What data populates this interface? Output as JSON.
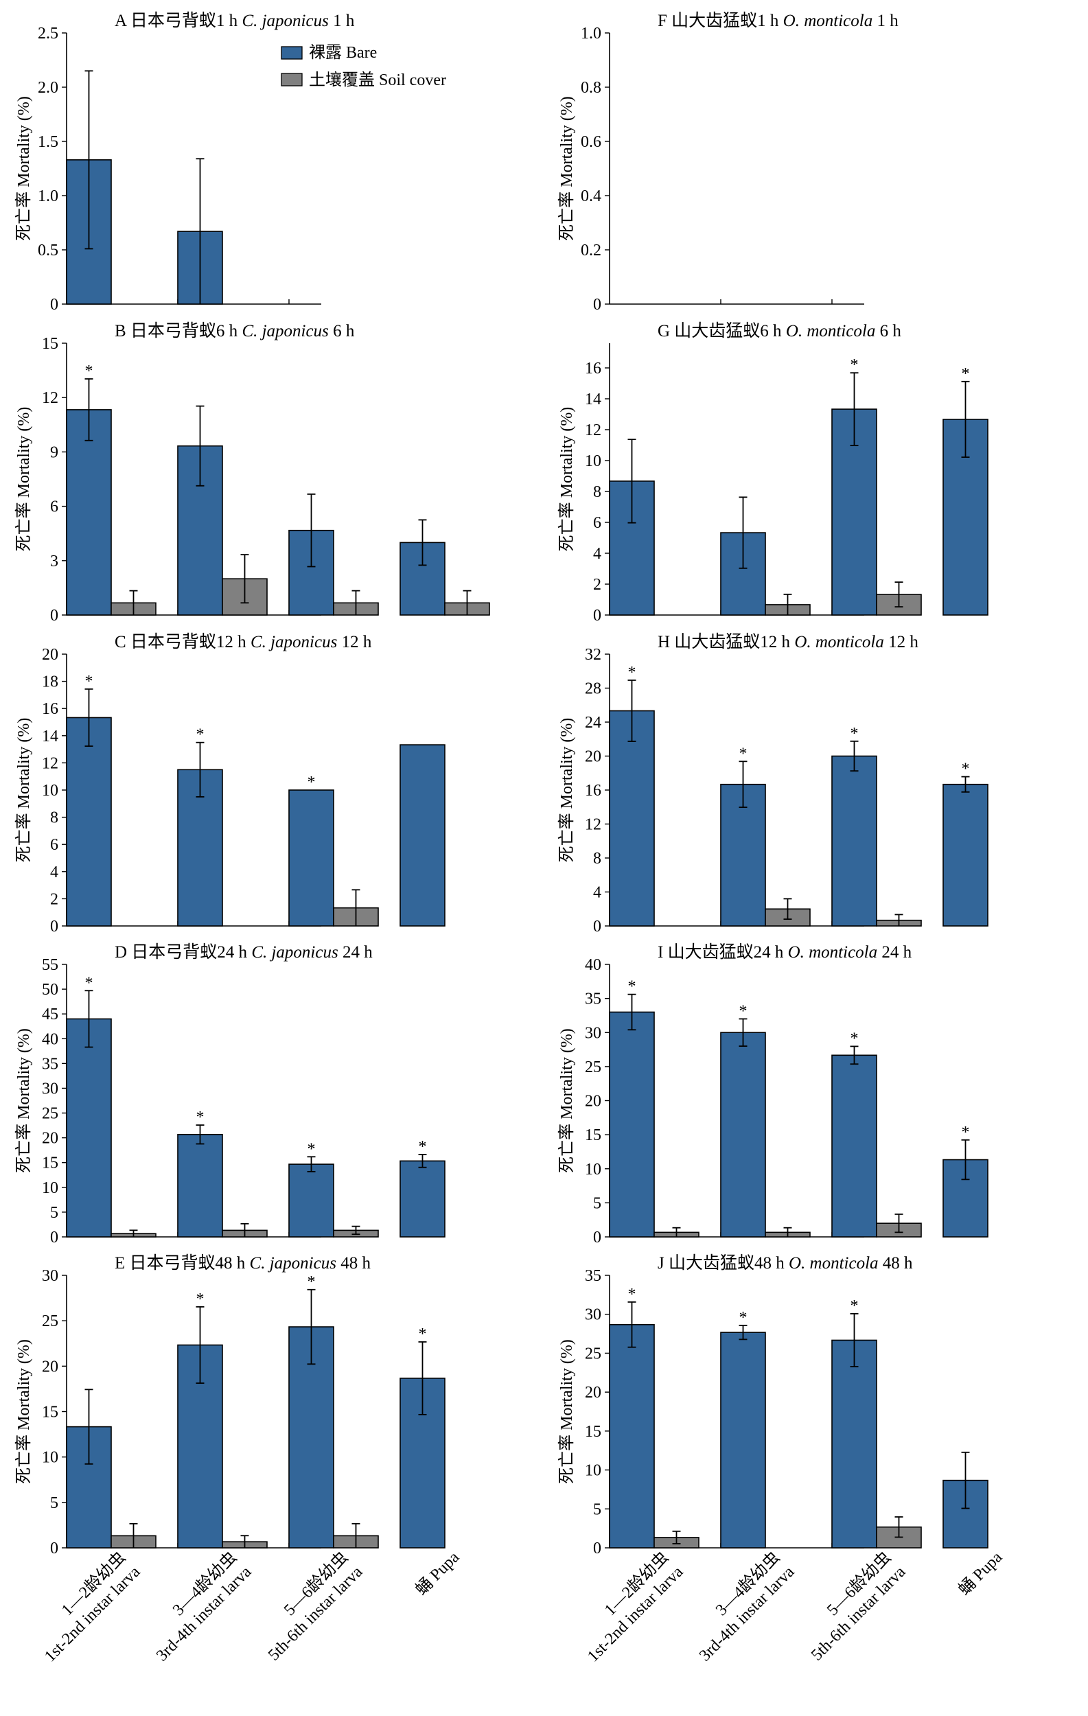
{
  "colors": {
    "bare": "#336699",
    "soil": "#808080"
  },
  "legend": [
    {
      "label": "裸露 Bare"
    },
    {
      "label": "土壤覆盖 Soil cover"
    }
  ],
  "ylabel": "死亡率 Mortality (%)",
  "x_categories": [
    {
      "zh": "1—2龄幼虫",
      "en": "1st-2nd instar larva"
    },
    {
      "zh": "3—4龄幼虫",
      "en": "3rd-4th instar larva"
    },
    {
      "zh": "5—6龄幼虫",
      "en": "5th-6th instar larva"
    },
    {
      "zh": "蛹 Pupa",
      "en": ""
    }
  ],
  "chart_data": [
    {
      "id": "A",
      "type": "bar",
      "title_prefix": "A  日本弓背蚁1 h ",
      "title_species": "C. japonicus",
      "title_suffix": " 1 h",
      "ylim": [
        0,
        2.5
      ],
      "yticks": [
        "0",
        "0.5",
        "1.0",
        "1.5",
        "2.0",
        "2.5"
      ],
      "series": [
        {
          "name": "裸露 Bare",
          "values": [
            1.33,
            0.67,
            0,
            0
          ],
          "errors": [
            0.82,
            0.67,
            0,
            0
          ],
          "significant": [
            false,
            false,
            false,
            false
          ]
        },
        {
          "name": "土壤覆盖 Soil cover",
          "values": [
            0,
            0,
            0,
            0
          ],
          "errors": [
            0,
            0,
            0,
            0
          ]
        }
      ]
    },
    {
      "id": "F",
      "type": "bar",
      "title_prefix": "F  山大齿猛蚁1 h ",
      "title_species": "O. monticola",
      "title_suffix": " 1 h",
      "ylim": [
        0,
        1.0
      ],
      "yticks": [
        "0",
        "0.2",
        "0.4",
        "0.6",
        "0.8",
        "1.0"
      ],
      "series": [
        {
          "name": "裸露 Bare",
          "values": [
            0,
            0,
            0,
            0
          ],
          "errors": [
            0,
            0,
            0,
            0
          ],
          "significant": [
            false,
            false,
            false,
            false
          ]
        },
        {
          "name": "土壤覆盖 Soil cover",
          "values": [
            0,
            0,
            0,
            0
          ],
          "errors": [
            0,
            0,
            0,
            0
          ]
        }
      ]
    },
    {
      "id": "B",
      "type": "bar",
      "title_prefix": "B  日本弓背蚁6 h ",
      "title_species": "C. japonicus",
      "title_suffix": " 6 h",
      "ylim": [
        0,
        15
      ],
      "yticks": [
        "0",
        "3",
        "6",
        "9",
        "12",
        "15"
      ],
      "series": [
        {
          "name": "裸露 Bare",
          "values": [
            11.33,
            9.33,
            4.67,
            4.0
          ],
          "errors": [
            1.7,
            2.2,
            2.0,
            1.25
          ],
          "significant": [
            true,
            false,
            false,
            false
          ]
        },
        {
          "name": "土壤覆盖 Soil cover",
          "values": [
            0.67,
            2.0,
            0.67,
            0.67
          ],
          "errors": [
            0.67,
            1.33,
            0.67,
            0.67
          ]
        }
      ]
    },
    {
      "id": "G",
      "type": "bar",
      "title_prefix": "G  山大齿猛蚁6 h ",
      "title_species": "O. monticola",
      "title_suffix": " 6 h",
      "ylim": [
        0,
        17.6
      ],
      "yticks": [
        "0",
        "2",
        "4",
        "6",
        "8",
        "10",
        "12",
        "14",
        "16"
      ],
      "series": [
        {
          "name": "裸露 Bare",
          "values": [
            8.67,
            5.33,
            13.33,
            12.67
          ],
          "errors": [
            2.7,
            2.3,
            2.35,
            2.45
          ],
          "significant": [
            false,
            false,
            true,
            true
          ]
        },
        {
          "name": "土壤覆盖 Soil cover",
          "values": [
            0,
            0.67,
            1.33,
            0
          ],
          "errors": [
            0,
            0.67,
            0.8,
            0
          ]
        }
      ]
    },
    {
      "id": "C",
      "type": "bar",
      "title_prefix": "C  日本弓背蚁12 h ",
      "title_species": "C. japonicus",
      "title_suffix": " 12 h",
      "ylim": [
        0,
        20
      ],
      "yticks": [
        "0",
        "2",
        "4",
        "6",
        "8",
        "10",
        "12",
        "14",
        "16",
        "18",
        "20"
      ],
      "series": [
        {
          "name": "裸露 Bare",
          "values": [
            15.33,
            11.5,
            10.0,
            13.33
          ],
          "errors": [
            2.1,
            2.0,
            0,
            0
          ],
          "significant": [
            true,
            true,
            true,
            false
          ]
        },
        {
          "name": "土壤覆盖 Soil cover",
          "values": [
            0,
            0,
            1.33,
            0
          ],
          "errors": [
            0,
            0,
            1.33,
            0
          ]
        }
      ]
    },
    {
      "id": "H",
      "type": "bar",
      "title_prefix": "H  山大齿猛蚁12 h ",
      "title_species": "O. monticola",
      "title_suffix": " 12 h",
      "ylim": [
        0,
        32
      ],
      "yticks": [
        "0",
        "4",
        "8",
        "12",
        "16",
        "20",
        "24",
        "28",
        "32"
      ],
      "series": [
        {
          "name": "裸露 Bare",
          "values": [
            25.33,
            16.67,
            20.0,
            16.67
          ],
          "errors": [
            3.6,
            2.7,
            1.75,
            0.9
          ],
          "significant": [
            true,
            true,
            true,
            true
          ]
        },
        {
          "name": "土壤覆盖 Soil cover",
          "values": [
            0,
            2.0,
            0.67,
            0
          ],
          "errors": [
            0,
            1.2,
            0.67,
            0
          ]
        }
      ]
    },
    {
      "id": "D",
      "type": "bar",
      "title_prefix": "D  日本弓背蚁24 h ",
      "title_species": "C. japonicus",
      "title_suffix": " 24 h",
      "ylim": [
        0,
        55
      ],
      "yticks": [
        "0",
        "5",
        "10",
        "15",
        "20",
        "25",
        "30",
        "35",
        "40",
        "45",
        "50",
        "55"
      ],
      "series": [
        {
          "name": "裸露 Bare",
          "values": [
            44.0,
            20.67,
            14.67,
            15.33
          ],
          "errors": [
            5.7,
            1.9,
            1.5,
            1.3
          ],
          "significant": [
            true,
            true,
            true,
            true
          ]
        },
        {
          "name": "土壤覆盖 Soil cover",
          "values": [
            0.67,
            1.33,
            1.33,
            0
          ],
          "errors": [
            0.67,
            1.33,
            0.8,
            0
          ]
        }
      ]
    },
    {
      "id": "I",
      "type": "bar",
      "title_prefix": "I  山大齿猛蚁24 h ",
      "title_species": "O. monticola",
      "title_suffix": " 24 h",
      "ylim": [
        0,
        40
      ],
      "yticks": [
        "0",
        "5",
        "10",
        "15",
        "20",
        "25",
        "30",
        "35",
        "40"
      ],
      "series": [
        {
          "name": "裸露 Bare",
          "values": [
            33.0,
            30.0,
            26.67,
            11.33
          ],
          "errors": [
            2.6,
            2.0,
            1.3,
            2.9
          ],
          "significant": [
            true,
            true,
            true,
            true
          ]
        },
        {
          "name": "土壤覆盖 Soil cover",
          "values": [
            0.67,
            0.67,
            2.0,
            0
          ],
          "errors": [
            0.67,
            0.67,
            1.33,
            0
          ]
        }
      ]
    },
    {
      "id": "E",
      "type": "bar",
      "title_prefix": "E  日本弓背蚁48 h ",
      "title_species": "C. japonicus",
      "title_suffix": " 48 h",
      "ylim": [
        0,
        30
      ],
      "yticks": [
        "0",
        "5",
        "10",
        "15",
        "20",
        "25",
        "30"
      ],
      "series": [
        {
          "name": "裸露 Bare",
          "values": [
            13.33,
            22.33,
            24.33,
            18.67
          ],
          "errors": [
            4.1,
            4.2,
            4.1,
            4.0
          ],
          "significant": [
            false,
            true,
            true,
            true
          ]
        },
        {
          "name": "土壤覆盖 Soil cover",
          "values": [
            1.33,
            0.67,
            1.33,
            0
          ],
          "errors": [
            1.33,
            0.67,
            1.33,
            0
          ]
        }
      ]
    },
    {
      "id": "J",
      "type": "bar",
      "title_prefix": "J  山大齿猛蚁48 h ",
      "title_species": "O. monticola",
      "title_suffix": " 48 h",
      "ylim": [
        0,
        35
      ],
      "yticks": [
        "0",
        "5",
        "10",
        "15",
        "20",
        "25",
        "30",
        "35"
      ],
      "series": [
        {
          "name": "裸露 Bare",
          "values": [
            28.67,
            27.67,
            26.67,
            8.67
          ],
          "errors": [
            2.9,
            0.9,
            3.4,
            3.6
          ],
          "significant": [
            true,
            true,
            true,
            false
          ]
        },
        {
          "name": "土壤覆盖 Soil cover",
          "values": [
            1.33,
            0,
            2.67,
            0
          ],
          "errors": [
            0.8,
            0,
            1.3,
            0
          ]
        }
      ]
    }
  ]
}
